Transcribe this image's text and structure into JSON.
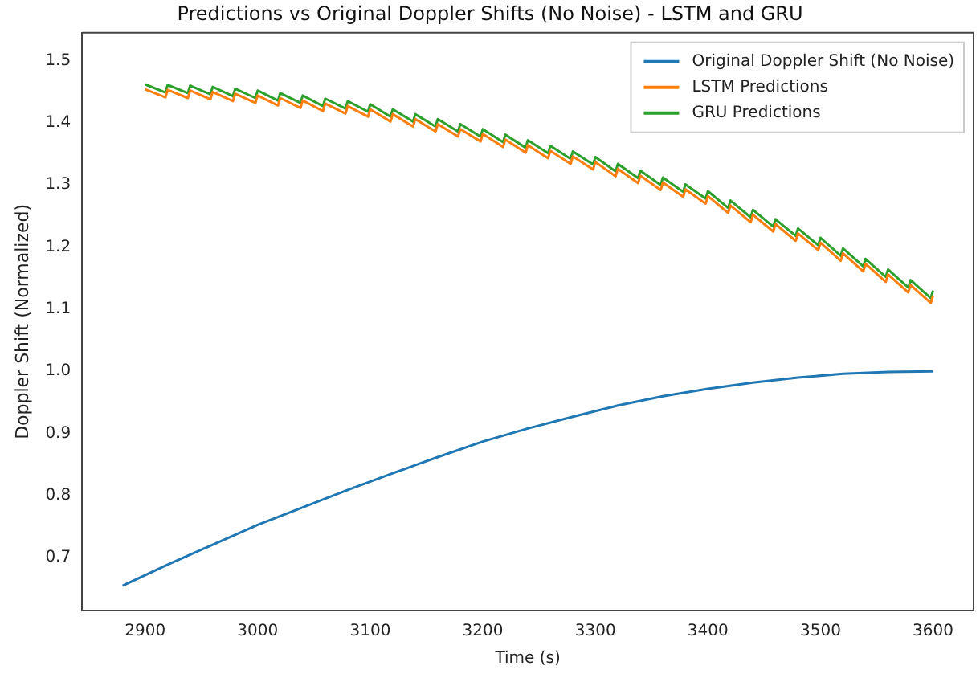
{
  "chart_data": {
    "type": "line",
    "title": "Predictions vs Original Doppler Shifts (No Noise) - LSTM and GRU",
    "xlabel": "Time (s)",
    "ylabel": "Doppler Shift (Normalized)",
    "x": [
      2900,
      2918,
      2920,
      2938,
      2940,
      2958,
      2960,
      2978,
      2980,
      2998,
      3000,
      3018,
      3020,
      3038,
      3040,
      3058,
      3060,
      3078,
      3080,
      3098,
      3100,
      3118,
      3120,
      3138,
      3140,
      3158,
      3160,
      3178,
      3180,
      3198,
      3200,
      3218,
      3220,
      3238,
      3240,
      3258,
      3260,
      3278,
      3280,
      3298,
      3300,
      3318,
      3320,
      3338,
      3340,
      3358,
      3360,
      3378,
      3380,
      3398,
      3400,
      3418,
      3420,
      3438,
      3440,
      3458,
      3460,
      3478,
      3480,
      3498,
      3500,
      3518,
      3520,
      3538,
      3540,
      3558,
      3560,
      3578,
      3580,
      3598,
      3600
    ],
    "series": [
      {
        "name": "Original Doppler Shift (No Noise)",
        "color": "#1f77b4",
        "x": [
          2880,
          2920,
          2960,
          3000,
          3040,
          3080,
          3120,
          3160,
          3200,
          3240,
          3280,
          3320,
          3360,
          3400,
          3440,
          3480,
          3520,
          3560,
          3600
        ],
        "values": [
          0.655,
          0.689,
          0.721,
          0.753,
          0.781,
          0.809,
          0.836,
          0.862,
          0.887,
          0.908,
          0.927,
          0.945,
          0.96,
          0.972,
          0.982,
          0.99,
          0.996,
          0.999,
          1.0
        ]
      },
      {
        "name": "LSTM Predictions",
        "color": "#ff7f0e",
        "values": [
          1.454,
          1.441,
          1.453,
          1.44,
          1.452,
          1.438,
          1.45,
          1.435,
          1.447,
          1.432,
          1.444,
          1.428,
          1.44,
          1.424,
          1.436,
          1.419,
          1.431,
          1.415,
          1.427,
          1.41,
          1.422,
          1.402,
          1.414,
          1.394,
          1.406,
          1.386,
          1.398,
          1.378,
          1.39,
          1.37,
          1.382,
          1.361,
          1.373,
          1.352,
          1.364,
          1.343,
          1.355,
          1.334,
          1.346,
          1.325,
          1.337,
          1.314,
          1.326,
          1.303,
          1.315,
          1.292,
          1.304,
          1.281,
          1.293,
          1.27,
          1.282,
          1.255,
          1.267,
          1.24,
          1.252,
          1.225,
          1.237,
          1.21,
          1.222,
          1.195,
          1.207,
          1.178,
          1.19,
          1.161,
          1.173,
          1.144,
          1.156,
          1.127,
          1.139,
          1.11,
          1.122
        ]
      },
      {
        "name": "GRU Predictions",
        "color": "#2ca02c",
        "values": [
          1.462,
          1.449,
          1.461,
          1.448,
          1.46,
          1.446,
          1.458,
          1.443,
          1.455,
          1.44,
          1.452,
          1.436,
          1.448,
          1.432,
          1.444,
          1.427,
          1.439,
          1.423,
          1.435,
          1.418,
          1.43,
          1.41,
          1.422,
          1.402,
          1.414,
          1.394,
          1.406,
          1.386,
          1.398,
          1.378,
          1.39,
          1.369,
          1.381,
          1.36,
          1.372,
          1.351,
          1.363,
          1.342,
          1.354,
          1.333,
          1.345,
          1.322,
          1.334,
          1.311,
          1.323,
          1.3,
          1.312,
          1.289,
          1.301,
          1.278,
          1.29,
          1.263,
          1.275,
          1.248,
          1.26,
          1.233,
          1.245,
          1.218,
          1.23,
          1.203,
          1.215,
          1.186,
          1.198,
          1.169,
          1.181,
          1.152,
          1.164,
          1.135,
          1.147,
          1.118,
          1.13
        ]
      }
    ],
    "xlim": [
      2844,
      3636
    ],
    "ylim": [
      0.615,
      1.545
    ],
    "xticks": [
      2900,
      3000,
      3100,
      3200,
      3300,
      3400,
      3500,
      3600
    ],
    "yticks": [
      0.7,
      0.8,
      0.9,
      {
        "value": 1,
        "label": "1.0"
      },
      1.1,
      1.2,
      1.3,
      1.4,
      1.5
    ],
    "legend": "top right",
    "marker": "none",
    "line_style": "solid"
  }
}
